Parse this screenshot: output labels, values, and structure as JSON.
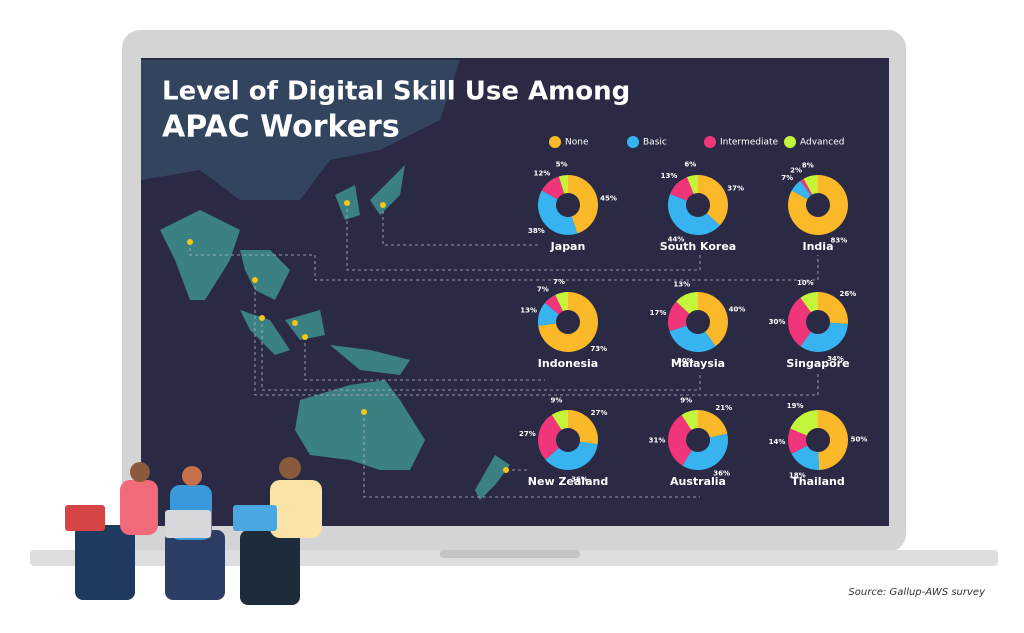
{
  "title": {
    "line1": "Level of Digital Skill Use Among",
    "line2": "APAC Workers"
  },
  "legend": {
    "names": [
      "None",
      "Basic",
      "Intermediate",
      "Advanced"
    ],
    "colors": [
      "#fbb829",
      "#37b4f0",
      "#f0357a",
      "#c4f53a"
    ]
  },
  "source": "Source: Gallup-AWS survey",
  "chart_data": [
    {
      "type": "pie",
      "title": "Japan",
      "values": [
        45,
        38,
        12,
        5
      ],
      "value_labels": [
        "45%",
        "38%",
        "12%",
        "5%"
      ]
    },
    {
      "type": "pie",
      "title": "South Korea",
      "values": [
        37,
        44,
        13,
        6
      ],
      "value_labels": [
        "37%",
        "44%",
        "13%",
        "6%"
      ]
    },
    {
      "type": "pie",
      "title": "India",
      "values": [
        83,
        7,
        2,
        8
      ],
      "value_labels": [
        "83%",
        "7%",
        "2%",
        "8%"
      ]
    },
    {
      "type": "pie",
      "title": "Indonesia",
      "values": [
        73,
        13,
        7,
        7
      ],
      "value_labels": [
        "73%",
        "13%",
        "7%",
        "7%"
      ]
    },
    {
      "type": "pie",
      "title": "Malaysia",
      "values": [
        40,
        30,
        17,
        13
      ],
      "value_labels": [
        "40%",
        "30%",
        "17%",
        "13%"
      ]
    },
    {
      "type": "pie",
      "title": "Singapore",
      "values": [
        26,
        34,
        30,
        10
      ],
      "value_labels": [
        "26%",
        "34%",
        "30%",
        "10%"
      ]
    },
    {
      "type": "pie",
      "title": "New Zealand",
      "values": [
        27,
        36,
        27,
        9
      ],
      "value_labels": [
        "27%",
        "36%",
        "27%",
        "9%"
      ]
    },
    {
      "type": "pie",
      "title": "Australia",
      "values": [
        21,
        36,
        31,
        9
      ],
      "value_labels": [
        "21%",
        "36%",
        "31%",
        "9%"
      ]
    },
    {
      "type": "pie",
      "title": "Thailand",
      "values": [
        50,
        18,
        14,
        19
      ],
      "value_labels": [
        "50%",
        "18%",
        "14%",
        "19%"
      ]
    }
  ]
}
